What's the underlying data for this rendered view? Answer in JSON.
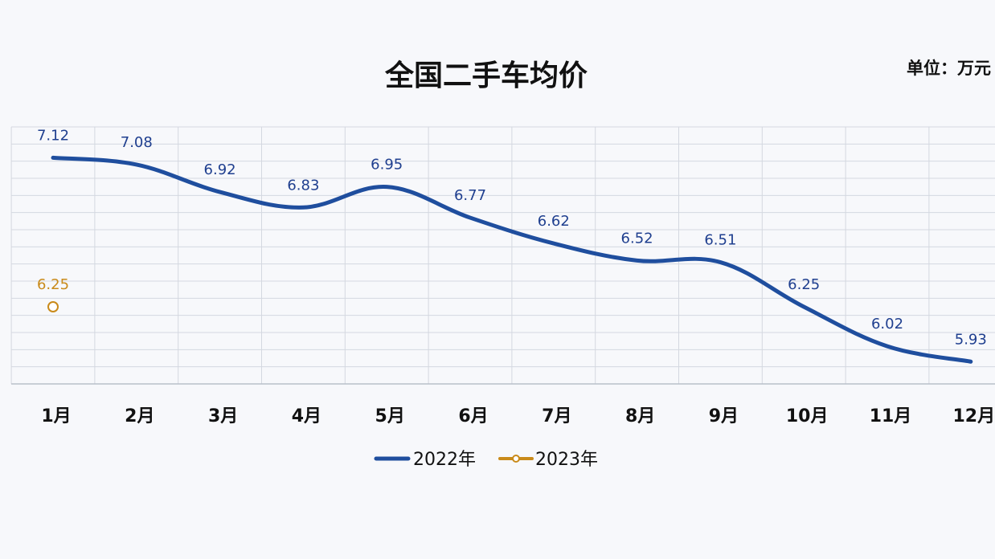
{
  "chart_data": {
    "type": "line",
    "title": "全国二手车均价",
    "unit_label": "单位：万元",
    "categories": [
      "1月",
      "2月",
      "3月",
      "4月",
      "5月",
      "6月",
      "7月",
      "8月",
      "9月",
      "10月",
      "11月",
      "12月"
    ],
    "series": [
      {
        "name": "2022年",
        "color": "#1f4e9e",
        "values": [
          7.12,
          7.08,
          6.92,
          6.83,
          6.95,
          6.77,
          6.62,
          6.52,
          6.51,
          6.25,
          6.02,
          5.93
        ],
        "labels": [
          "7.12",
          "7.08",
          "6.92",
          "6.83",
          "6.95",
          "6.77",
          "6.62",
          "6.52",
          "6.51",
          "6.25",
          "6.02",
          "5.93"
        ]
      },
      {
        "name": "2023年",
        "color": "#c98a1a",
        "values": [
          6.25,
          null,
          null,
          null,
          null,
          null,
          null,
          null,
          null,
          null,
          null,
          null
        ],
        "labels": [
          "6.25",
          "",
          "",
          "",
          "",
          "",
          "",
          "",
          "",
          "",
          "",
          ""
        ]
      }
    ],
    "ylim": [
      5.8,
      7.3
    ],
    "grid": true,
    "legend_position": "bottom-center"
  }
}
